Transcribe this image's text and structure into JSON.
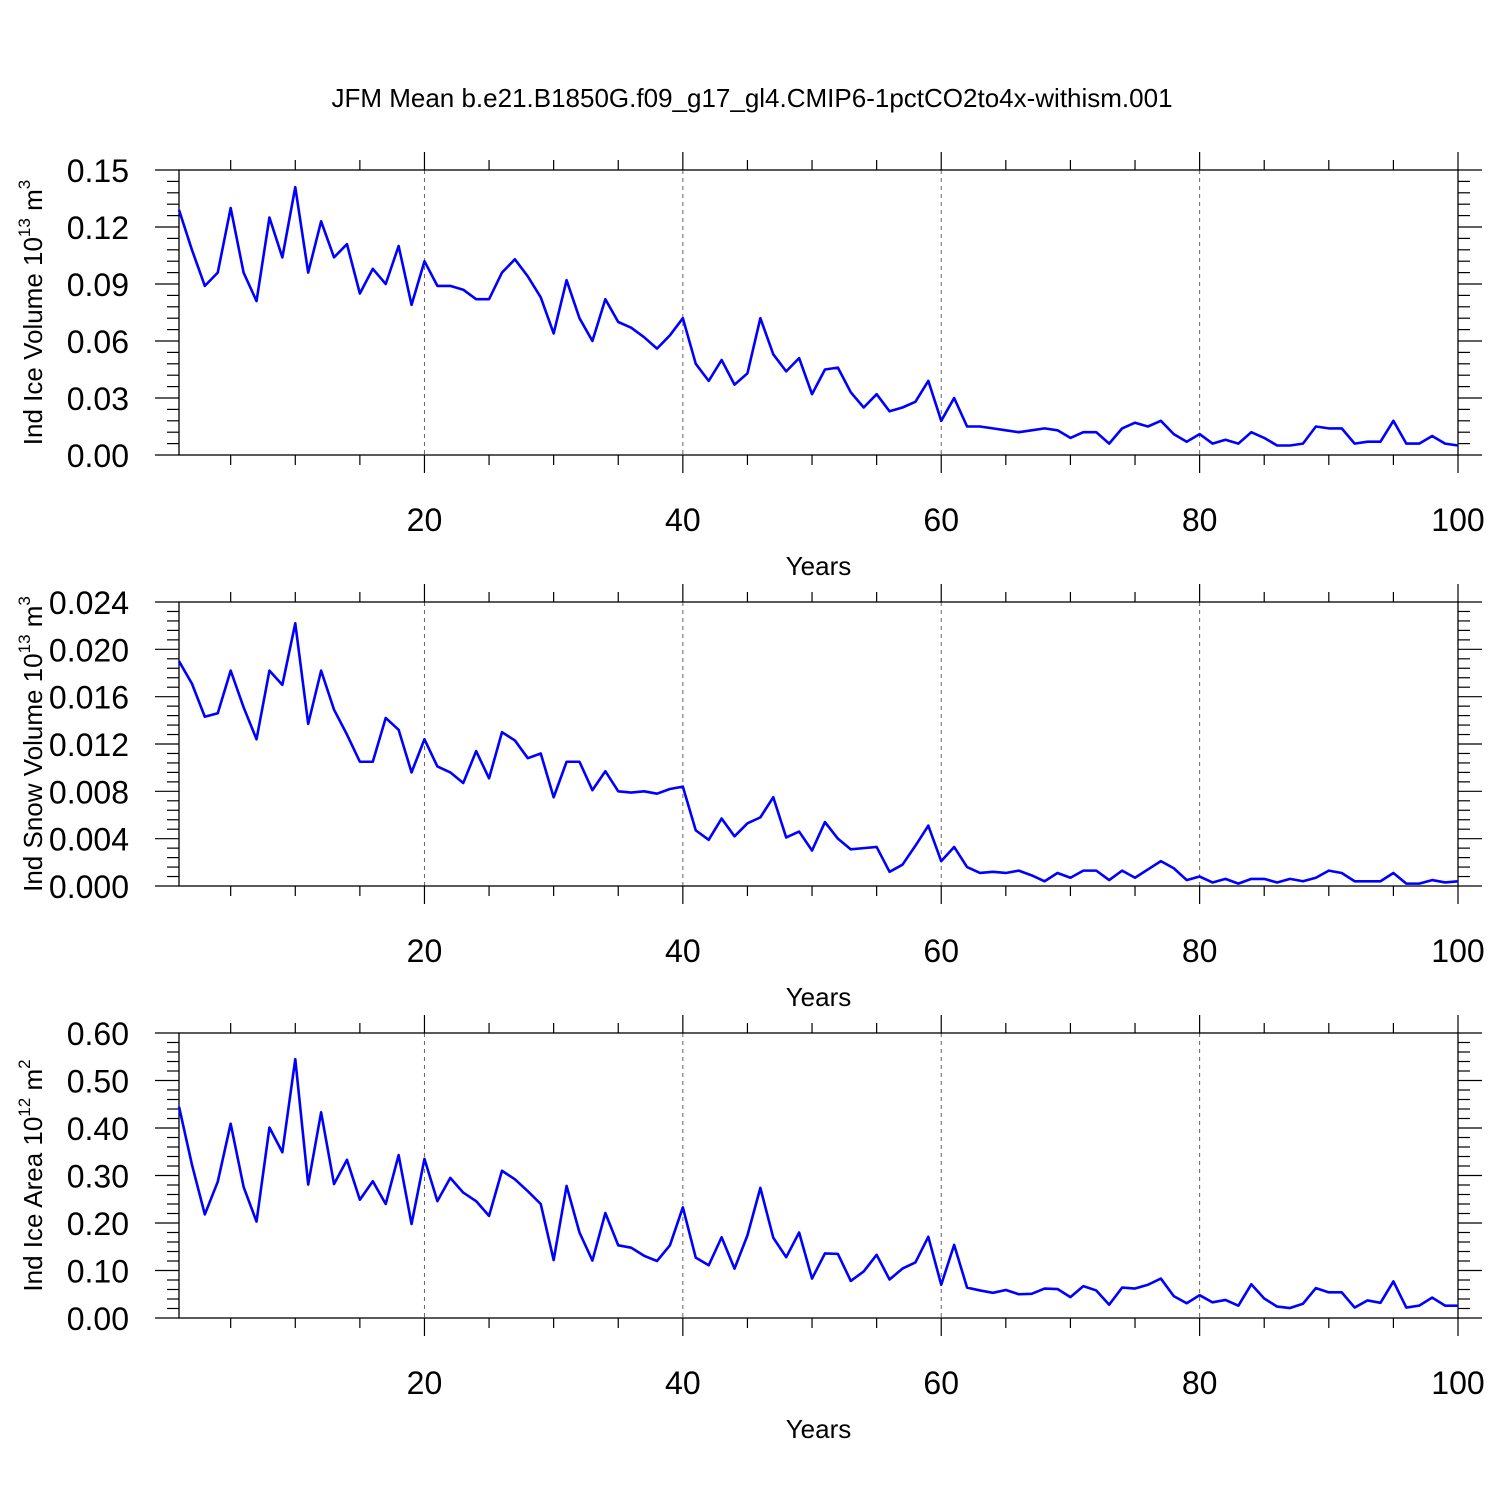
{
  "chart_data": {
    "title": "JFM Mean b.e21.B1850G.f09_g17_gl4.CMIP6-1pctCO2to4x-withism.001",
    "type": "line",
    "colors": {
      "line": "#0000ff",
      "frame": "#000000",
      "grid": "#666666"
    },
    "panels": [
      {
        "id": "ice-volume",
        "ylabel": "Ind Ice Volume 10",
        "ylabel_exp": "13",
        "ylabel_unit": " m",
        "ylabel_unit_exp": "3",
        "xlabel": "Years",
        "xlim": [
          1,
          100
        ],
        "ylim": [
          0,
          0.15
        ],
        "xticks": [
          20,
          40,
          60,
          80,
          100
        ],
        "yticks": [
          {
            "v": 0.0,
            "label": "0.00"
          },
          {
            "v": 0.03,
            "label": "0.03"
          },
          {
            "v": 0.06,
            "label": "0.06"
          },
          {
            "v": 0.09,
            "label": "0.09"
          },
          {
            "v": 0.12,
            "label": "0.12"
          },
          {
            "v": 0.15,
            "label": "0.15"
          }
        ],
        "grid_x": true,
        "values": [
          0.129,
          0.108,
          0.089,
          0.096,
          0.13,
          0.096,
          0.081,
          0.125,
          0.104,
          0.141,
          0.096,
          0.123,
          0.104,
          0.111,
          0.085,
          0.098,
          0.09,
          0.11,
          0.079,
          0.102,
          0.089,
          0.089,
          0.087,
          0.082,
          0.082,
          0.096,
          0.103,
          0.094,
          0.083,
          0.064,
          0.092,
          0.072,
          0.06,
          0.082,
          0.07,
          0.067,
          0.062,
          0.056,
          0.063,
          0.072,
          0.048,
          0.039,
          0.05,
          0.037,
          0.043,
          0.072,
          0.053,
          0.044,
          0.051,
          0.032,
          0.045,
          0.046,
          0.033,
          0.025,
          0.032,
          0.023,
          0.025,
          0.028,
          0.039,
          0.018,
          0.03,
          0.015,
          0.015,
          0.014,
          0.013,
          0.012,
          0.013,
          0.014,
          0.013,
          0.009,
          0.012,
          0.012,
          0.006,
          0.014,
          0.017,
          0.015,
          0.018,
          0.011,
          0.007,
          0.011,
          0.006,
          0.008,
          0.006,
          0.012,
          0.009,
          0.005,
          0.005,
          0.006,
          0.015,
          0.014,
          0.014,
          0.006,
          0.007,
          0.007,
          0.018,
          0.006,
          0.006,
          0.01,
          0.006,
          0.005
        ]
      },
      {
        "id": "snow-volume",
        "ylabel": "Ind Snow Volume 10",
        "ylabel_exp": "13",
        "ylabel_unit": " m",
        "ylabel_unit_exp": "3",
        "xlabel": "Years",
        "xlim": [
          1,
          100
        ],
        "ylim": [
          0,
          0.024
        ],
        "xticks": [
          20,
          40,
          60,
          80,
          100
        ],
        "yticks": [
          {
            "v": 0.0,
            "label": "0.000"
          },
          {
            "v": 0.004,
            "label": "0.004"
          },
          {
            "v": 0.008,
            "label": "0.008"
          },
          {
            "v": 0.012,
            "label": "0.012"
          },
          {
            "v": 0.016,
            "label": "0.016"
          },
          {
            "v": 0.02,
            "label": "0.020"
          },
          {
            "v": 0.024,
            "label": "0.024"
          }
        ],
        "grid_x": true,
        "values": [
          0.019,
          0.0171,
          0.0143,
          0.0146,
          0.0182,
          0.0151,
          0.0124,
          0.0182,
          0.017,
          0.0222,
          0.0137,
          0.0182,
          0.0149,
          0.0128,
          0.0105,
          0.0105,
          0.0142,
          0.0132,
          0.0096,
          0.0124,
          0.0101,
          0.0096,
          0.0087,
          0.0114,
          0.0091,
          0.013,
          0.0123,
          0.0108,
          0.0112,
          0.0075,
          0.0105,
          0.0105,
          0.0081,
          0.0097,
          0.008,
          0.0079,
          0.008,
          0.0078,
          0.0082,
          0.0084,
          0.0047,
          0.0039,
          0.0057,
          0.0042,
          0.0053,
          0.0058,
          0.0075,
          0.0041,
          0.0046,
          0.003,
          0.0054,
          0.004,
          0.0031,
          0.0032,
          0.0033,
          0.0012,
          0.0018,
          0.0034,
          0.0051,
          0.0021,
          0.0033,
          0.0016,
          0.0011,
          0.0012,
          0.0011,
          0.0013,
          0.0009,
          0.0004,
          0.0011,
          0.0007,
          0.0013,
          0.0013,
          0.0005,
          0.0013,
          0.0007,
          0.0014,
          0.0021,
          0.0015,
          0.0005,
          0.0008,
          0.0003,
          0.0006,
          0.0002,
          0.0006,
          0.0006,
          0.0003,
          0.0006,
          0.0004,
          0.0007,
          0.0013,
          0.0011,
          0.0004,
          0.0004,
          0.0004,
          0.0011,
          0.0002,
          0.0002,
          0.0005,
          0.0003,
          0.0004
        ]
      },
      {
        "id": "ice-area",
        "ylabel": "Ind Ice Area 10",
        "ylabel_exp": "12",
        "ylabel_unit": " m",
        "ylabel_unit_exp": "2",
        "xlabel": "Years",
        "xlim": [
          1,
          100
        ],
        "ylim": [
          0,
          0.6
        ],
        "xticks": [
          20,
          40,
          60,
          80,
          100
        ],
        "yticks": [
          {
            "v": 0.0,
            "label": "0.00"
          },
          {
            "v": 0.1,
            "label": "0.10"
          },
          {
            "v": 0.2,
            "label": "0.20"
          },
          {
            "v": 0.3,
            "label": "0.30"
          },
          {
            "v": 0.4,
            "label": "0.40"
          },
          {
            "v": 0.5,
            "label": "0.50"
          },
          {
            "v": 0.6,
            "label": "0.60"
          }
        ],
        "grid_x": true,
        "values": [
          0.445,
          0.323,
          0.218,
          0.287,
          0.409,
          0.276,
          0.203,
          0.401,
          0.349,
          0.545,
          0.281,
          0.433,
          0.282,
          0.333,
          0.249,
          0.288,
          0.24,
          0.343,
          0.198,
          0.335,
          0.246,
          0.295,
          0.264,
          0.246,
          0.215,
          0.31,
          0.292,
          0.267,
          0.24,
          0.122,
          0.278,
          0.18,
          0.121,
          0.221,
          0.153,
          0.148,
          0.131,
          0.12,
          0.153,
          0.233,
          0.127,
          0.111,
          0.17,
          0.104,
          0.174,
          0.274,
          0.169,
          0.128,
          0.18,
          0.083,
          0.136,
          0.135,
          0.078,
          0.098,
          0.133,
          0.081,
          0.104,
          0.117,
          0.171,
          0.07,
          0.154,
          0.064,
          0.058,
          0.053,
          0.059,
          0.05,
          0.051,
          0.062,
          0.061,
          0.044,
          0.067,
          0.058,
          0.028,
          0.064,
          0.062,
          0.07,
          0.083,
          0.046,
          0.031,
          0.048,
          0.033,
          0.038,
          0.026,
          0.071,
          0.041,
          0.024,
          0.021,
          0.03,
          0.063,
          0.054,
          0.054,
          0.022,
          0.037,
          0.032,
          0.077,
          0.022,
          0.026,
          0.043,
          0.026,
          0.026
        ]
      }
    ]
  }
}
